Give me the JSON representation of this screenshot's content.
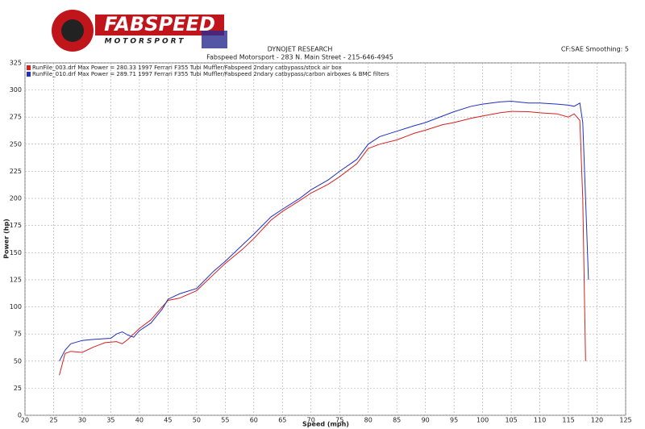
{
  "logo": {
    "name": "FABSPEED",
    "tagline": "MOTORSPORT"
  },
  "chart_data": {
    "type": "line",
    "title": "DYNOJET RESEARCH",
    "subtitle": "Fabspeed Motorsport - 283 N. Main Street - 215-646-4945",
    "settings_note": "CF:SAE  Smoothing: 5",
    "x_label": "Speed (mph)",
    "y_label": "Power (hp)",
    "xlim": [
      20,
      125
    ],
    "xticks": [
      20,
      25,
      30,
      35,
      40,
      45,
      50,
      55,
      60,
      65,
      70,
      75,
      80,
      85,
      90,
      95,
      100,
      105,
      110,
      115,
      120,
      125
    ],
    "ylim": [
      0,
      325
    ],
    "yticks": [
      0,
      25,
      50,
      75,
      100,
      125,
      150,
      175,
      200,
      225,
      250,
      275,
      300,
      325
    ],
    "grid": true,
    "series": [
      {
        "name": "RunFile_003.drf Max Power = 280.33   1997 Ferrari F355 Tubi Muffler/Fabspeed 2ndary catbypass/stock air box",
        "color": "#d42020",
        "x": [
          26,
          27,
          28,
          30,
          32,
          34,
          36,
          37,
          38,
          40,
          42,
          44,
          45,
          47,
          50,
          53,
          55,
          58,
          60,
          63,
          65,
          68,
          70,
          73,
          75,
          78,
          80,
          82,
          85,
          88,
          90,
          93,
          95,
          98,
          100,
          103,
          105,
          108,
          110,
          113,
          115,
          116,
          117,
          117.5,
          118
        ],
        "values": [
          37,
          57,
          59,
          58,
          63,
          67,
          68,
          66,
          70,
          80,
          88,
          100,
          106,
          108,
          115,
          130,
          140,
          153,
          163,
          180,
          188,
          198,
          205,
          213,
          220,
          232,
          246,
          250,
          254,
          260,
          263,
          268,
          270,
          274,
          276,
          279,
          280.33,
          280,
          279,
          278,
          275,
          278,
          272,
          200,
          50
        ]
      },
      {
        "name": "RunFile_010.drf Max Power = 289.71   1997 Ferrari F355 Tubi Muffler/Fabspeed 2ndary catbypass/carbon airboxes & BMC filters",
        "color": "#2030c0",
        "x": [
          26,
          27,
          28,
          30,
          32,
          35,
          36,
          37,
          38,
          39,
          40,
          42,
          44,
          45,
          47,
          50,
          53,
          55,
          58,
          60,
          63,
          65,
          68,
          70,
          73,
          75,
          78,
          80,
          82,
          85,
          88,
          90,
          93,
          95,
          98,
          100,
          103,
          105,
          108,
          110,
          113,
          115,
          116,
          117,
          117.5,
          118,
          118.5
        ],
        "values": [
          50,
          60,
          66,
          69,
          70,
          71,
          75,
          77,
          74,
          72,
          78,
          85,
          98,
          107,
          112,
          117,
          133,
          142,
          157,
          167,
          183,
          190,
          200,
          208,
          217,
          225,
          236,
          250,
          257,
          262,
          267,
          270,
          276,
          280,
          285,
          287,
          289,
          289.71,
          288,
          288,
          287,
          286,
          285,
          288,
          270,
          200,
          125
        ]
      }
    ]
  }
}
